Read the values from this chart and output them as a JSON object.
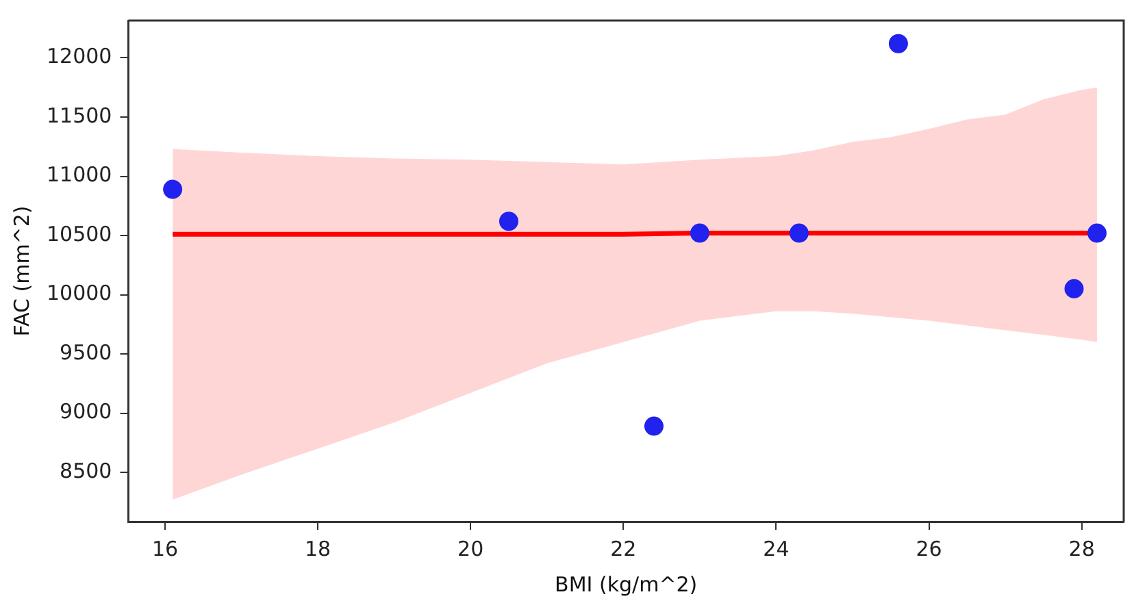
{
  "chart_data": {
    "type": "scatter",
    "xlabel": "BMI (kg/m^2)",
    "ylabel": "FAC (mm^2)",
    "xlim": [
      15.52,
      28.55
    ],
    "xticks": [
      16,
      18,
      20,
      22,
      24,
      26,
      28
    ],
    "ylim": [
      8084,
      12315
    ],
    "yticks": [
      8500,
      9000,
      9500,
      10000,
      10500,
      11000,
      11500,
      12000
    ],
    "grid": false,
    "legend": false,
    "series": [
      {
        "color": "#2222ee",
        "marker": "circle",
        "x": [
          16.1,
          20.5,
          22.4,
          23.0,
          24.3,
          25.6,
          27.9,
          28.2
        ],
        "values": [
          10890,
          10620,
          8890,
          10520,
          10520,
          12120,
          10050,
          10520
        ]
      },
      {
        "type": "line",
        "color": "#ff0000",
        "marker": "none",
        "line_style": "solid",
        "x": [
          16.1,
          17,
          18,
          19,
          20,
          21,
          22,
          23,
          24,
          24.5,
          25,
          25.5,
          26,
          26.5,
          27,
          27.5,
          28,
          28.2
        ],
        "values": [
          10510,
          10510,
          10510,
          10510,
          10510,
          10510,
          10510,
          10520,
          10520,
          10520,
          10520,
          10520,
          10520,
          10520,
          10520,
          10520,
          10520,
          10520
        ],
        "lower": [
          8270,
          8480,
          8700,
          8920,
          9170,
          9420,
          9600,
          9780,
          9860,
          9860,
          9840,
          9810,
          9780,
          9740,
          9700,
          9660,
          9620,
          9600
        ],
        "upper": [
          11230,
          11200,
          11170,
          11150,
          11140,
          11120,
          11100,
          11140,
          11170,
          11220,
          11290,
          11330,
          11400,
          11480,
          11520,
          11650,
          11730,
          11750
        ]
      }
    ]
  }
}
